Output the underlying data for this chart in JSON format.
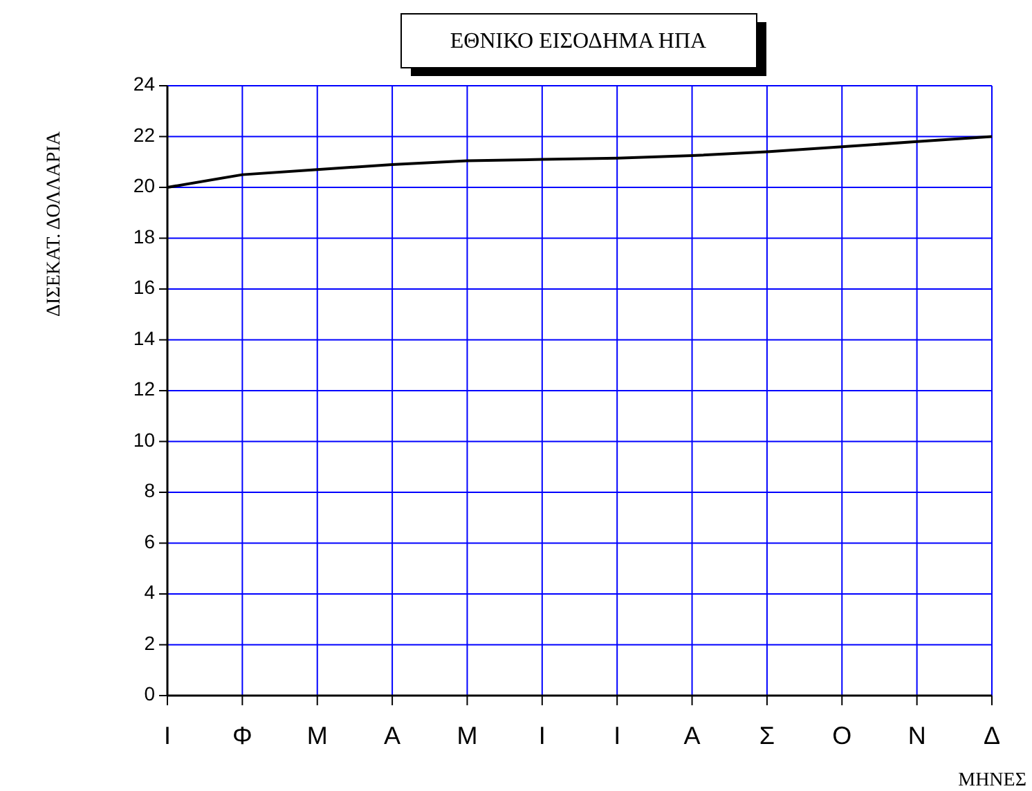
{
  "chart_data": {
    "type": "line",
    "title": "ΕΘΝΙΚΟ ΕΙΣΟΔΗΜΑ ΗΠΑ",
    "xlabel": "ΜΗΝΕΣ",
    "ylabel": "ΔΙΣΕΚΑΤ. ΔΟΛΛΑΡΙΑ",
    "categories": [
      "Ι",
      "Φ",
      "Μ",
      "Α",
      "Μ",
      "Ι",
      "Ι",
      "Α",
      "Σ",
      "Ο",
      "Ν",
      "Δ"
    ],
    "series": [
      {
        "color": "#000000",
        "values": [
          20,
          20.5,
          20.7,
          20.9,
          21.05,
          21.1,
          21.15,
          21.25,
          21.4,
          21.6,
          21.8,
          22
        ]
      }
    ],
    "ylim": [
      0,
      24
    ],
    "yticks": [
      0,
      2,
      4,
      6,
      8,
      10,
      12,
      14,
      16,
      18,
      20,
      22,
      24
    ],
    "grid": true,
    "marker": "none",
    "line_style": "solid"
  }
}
